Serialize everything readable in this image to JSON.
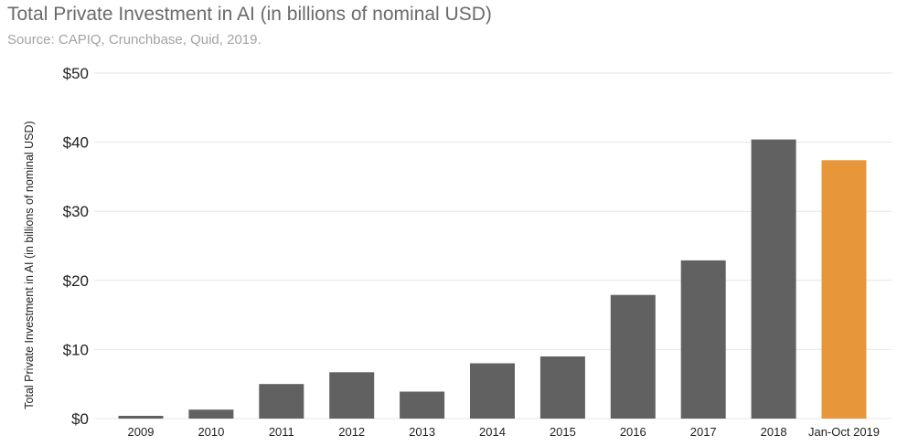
{
  "chart_data": {
    "type": "bar",
    "title": "Total Private Investment in AI (in billions of nominal USD)",
    "subtitle": "Source: CAPIQ, Crunchbase, Quid, 2019.",
    "xlabel": "",
    "ylabel": "Total Private Investment in AI (in billions of nominal USD)",
    "categories": [
      "2009",
      "2010",
      "2011",
      "2012",
      "2013",
      "2014",
      "2015",
      "2016",
      "2017",
      "2018",
      "Jan-Oct 2019"
    ],
    "values": [
      0.4,
      1.3,
      5.0,
      6.7,
      3.9,
      8.0,
      9.0,
      17.9,
      22.9,
      40.4,
      37.4
    ],
    "ylim": [
      0,
      50
    ],
    "yticks": [
      0,
      10,
      20,
      30,
      40,
      50
    ],
    "ytick_labels": [
      "$0",
      "$10",
      "$20",
      "$30",
      "$40",
      "$50"
    ],
    "grid": true,
    "legend": "none",
    "colors": {
      "default_bar": "#616161",
      "highlight_bar": "#e8963a",
      "gridline": "#e6e6e6"
    },
    "highlight_category": "Jan-Oct 2019"
  }
}
